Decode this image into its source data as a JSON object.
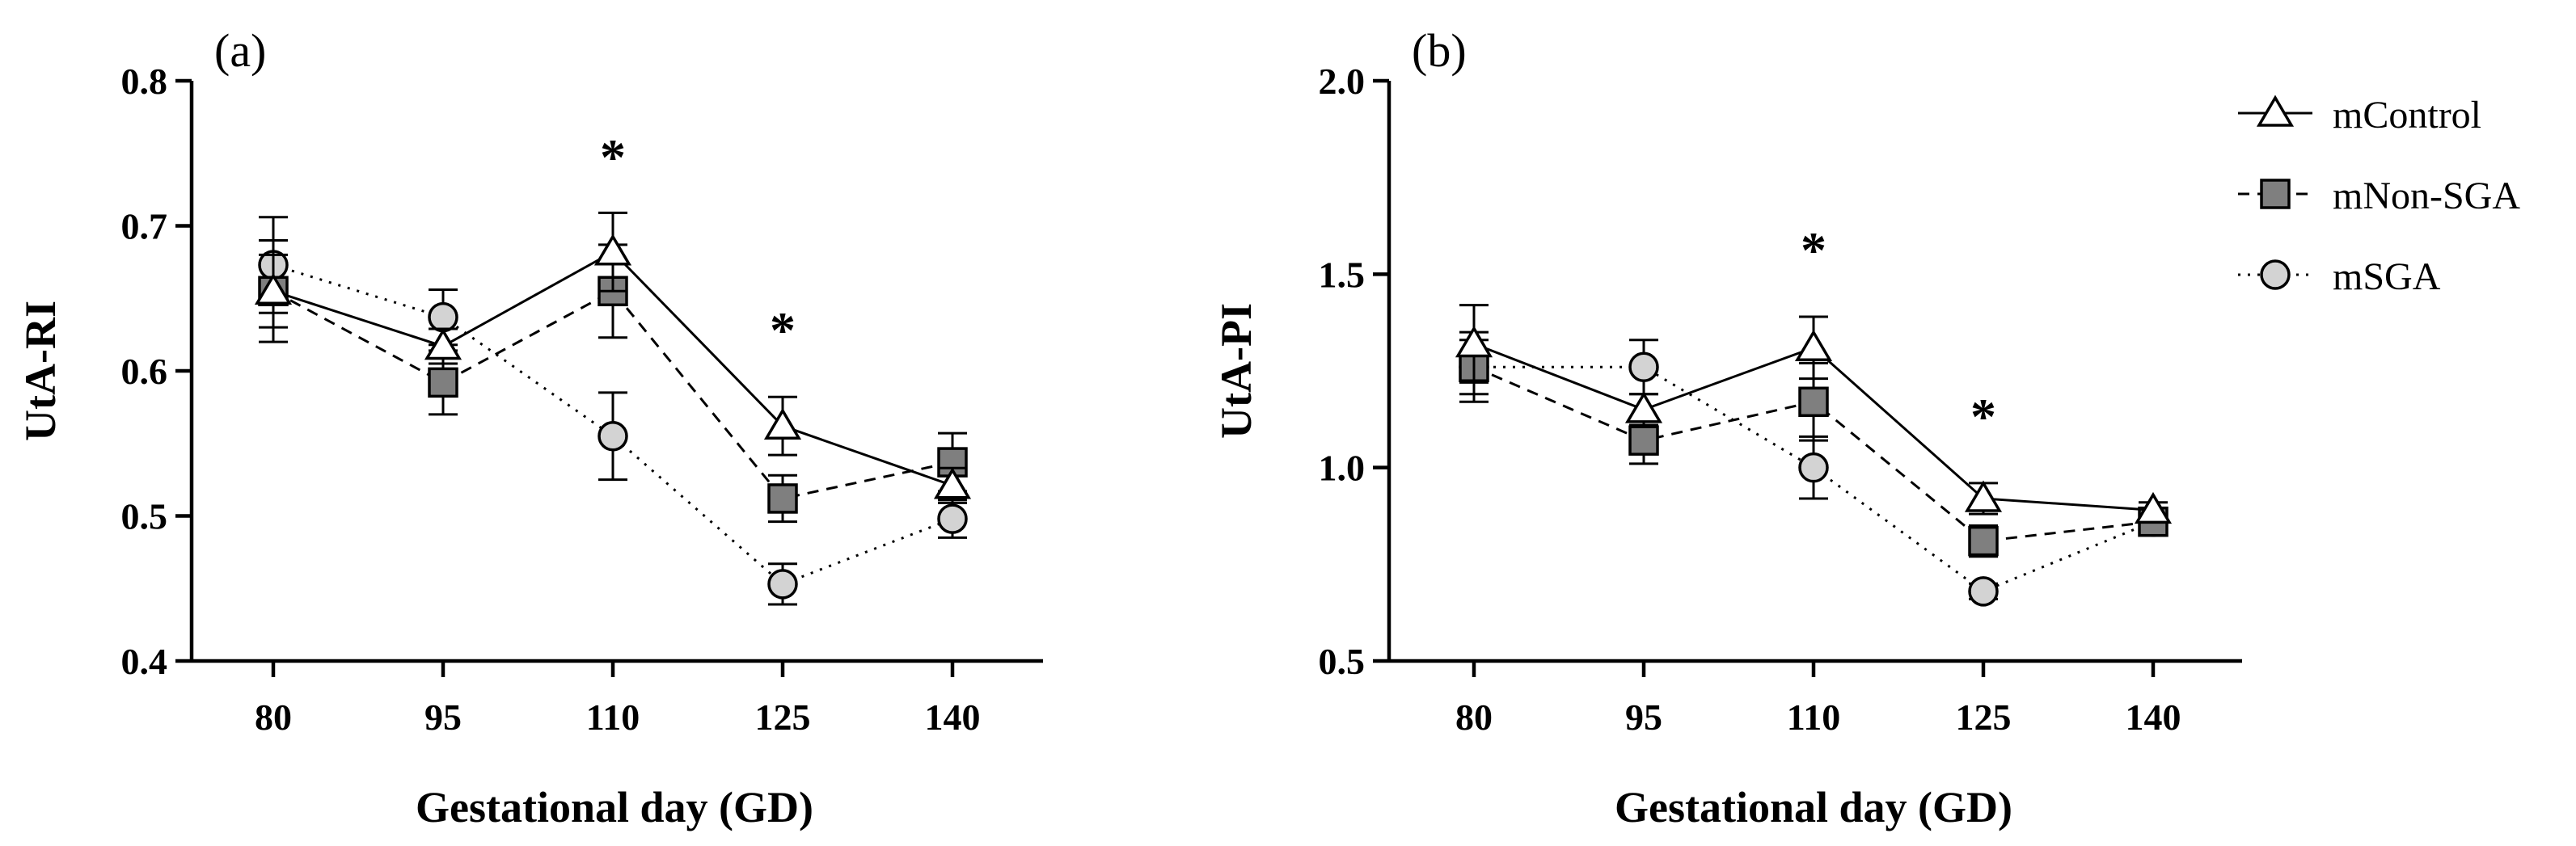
{
  "chart_data": [
    {
      "type": "line",
      "panel_label": "(a)",
      "xlabel": "Gestational day (GD)",
      "ylabel": "UtA-RI",
      "categories": [
        "80",
        "95",
        "110",
        "125",
        "140"
      ],
      "ylim": [
        0.4,
        0.8
      ],
      "yticks": [
        "0.4",
        "0.5",
        "0.6",
        "0.7",
        "0.8"
      ],
      "series": [
        {
          "name": "mControl",
          "values": [
            0.655,
            0.617,
            0.682,
            0.562,
            0.521
          ],
          "err": [
            0.025,
            0.012,
            0.027,
            0.02,
            0.012
          ]
        },
        {
          "name": "mNon-SGA",
          "values": [
            0.655,
            0.592,
            0.655,
            0.512,
            0.537
          ],
          "err": [
            0.035,
            0.022,
            0.032,
            0.016,
            0.02
          ]
        },
        {
          "name": "mSGA",
          "values": [
            0.673,
            0.637,
            0.555,
            0.453,
            0.498
          ],
          "err": [
            0.033,
            0.019,
            0.03,
            0.014,
            0.013
          ]
        }
      ],
      "annotations": [
        {
          "text": "*",
          "category": "110",
          "y": 0.752
        },
        {
          "text": "*",
          "category": "125",
          "y": 0.633
        }
      ]
    },
    {
      "type": "line",
      "panel_label": "(b)",
      "xlabel": "Gestational day (GD)",
      "ylabel": "UtA-PI",
      "categories": [
        "80",
        "95",
        "110",
        "125",
        "140"
      ],
      "ylim": [
        0.5,
        2.0
      ],
      "yticks": [
        "0.5",
        "1.0",
        "1.5",
        "2.0"
      ],
      "series": [
        {
          "name": "mControl",
          "values": [
            1.32,
            1.15,
            1.31,
            0.92,
            0.89
          ],
          "err": [
            0.1,
            0.04,
            0.08,
            0.04,
            0.02
          ]
        },
        {
          "name": "mNon-SGA",
          "values": [
            1.26,
            1.07,
            1.17,
            0.81,
            0.86
          ],
          "err": [
            0.09,
            0.06,
            0.1,
            0.04,
            0.02
          ]
        },
        {
          "name": "mSGA",
          "values": [
            1.26,
            1.26,
            1.0,
            0.68,
            0.86
          ],
          "err": [
            0.07,
            0.07,
            0.08,
            0.02,
            0.02
          ]
        }
      ],
      "annotations": [
        {
          "text": "*",
          "category": "110",
          "y": 1.58
        },
        {
          "text": "*",
          "category": "125",
          "y": 1.15
        }
      ]
    }
  ],
  "legend": {
    "placement": "top-right",
    "items": [
      {
        "label": "mControl",
        "marker": "triangle",
        "fill": "#ffffff",
        "line": "solid"
      },
      {
        "label": "mNon-SGA",
        "marker": "square",
        "fill": "#7f7f7f",
        "line": "dashed"
      },
      {
        "label": "mSGA",
        "marker": "circle",
        "fill": "#d3d3d3",
        "line": "dotted"
      }
    ]
  }
}
